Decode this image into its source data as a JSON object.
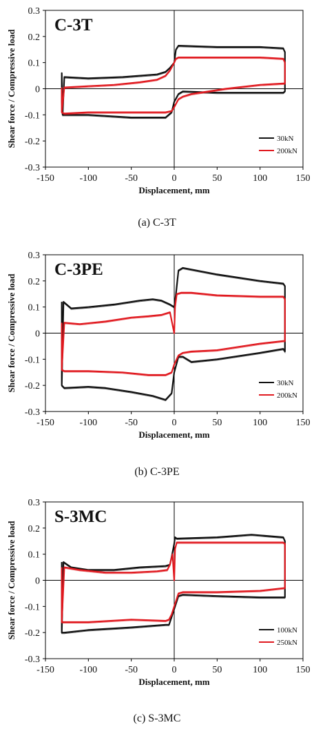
{
  "colors": {
    "series_a": "#111111",
    "series_b": "#e0191f",
    "axis": "#000000"
  },
  "chart_data": [
    {
      "type": "line",
      "title": "C-3T",
      "caption": "(a) C-3T",
      "xlabel": "Displacement, mm",
      "ylabel": "Shear force / Compressive load",
      "xlim": [
        -150,
        150
      ],
      "ylim": [
        -0.3,
        0.3
      ],
      "xticks": [
        "-150",
        "-100",
        "-50",
        "0",
        "50",
        "100",
        "150"
      ],
      "yticks": [
        "0.3",
        "0.2",
        "0.1",
        "0",
        "-0.1",
        "-0.2",
        "-0.3"
      ],
      "grid": false,
      "legend_position": "bottom-right",
      "series": [
        {
          "name": "30kN",
          "x": [
            -130,
            -128,
            -100,
            -60,
            -20,
            -10,
            -5,
            0,
            2,
            5,
            50,
            100,
            127,
            129,
            129,
            127,
            100,
            50,
            10,
            5,
            0,
            -3,
            -10,
            -50,
            -100,
            -128,
            -130,
            -131,
            -131,
            -130
          ],
          "y": [
            -0.1,
            0.045,
            0.04,
            0.045,
            0.055,
            0.065,
            0.08,
            0.1,
            0.15,
            0.165,
            0.16,
            0.16,
            0.155,
            0.14,
            -0.01,
            -0.015,
            -0.015,
            -0.015,
            -0.01,
            -0.02,
            -0.05,
            -0.09,
            -0.11,
            -0.11,
            -0.1,
            -0.1,
            -0.1,
            -0.05,
            0.06,
            -0.1
          ]
        },
        {
          "name": "200kN",
          "x": [
            -131,
            -128,
            -100,
            -70,
            -40,
            -20,
            -10,
            -5,
            0,
            2,
            5,
            50,
            100,
            127,
            129,
            129,
            127,
            100,
            60,
            20,
            10,
            5,
            0,
            -3,
            -10,
            -50,
            -100,
            -128,
            -131,
            -131
          ],
          "y": [
            -0.09,
            0.005,
            0.01,
            0.015,
            0.025,
            0.035,
            0.05,
            0.07,
            0.1,
            0.115,
            0.12,
            0.12,
            0.12,
            0.115,
            0.1,
            0.02,
            0.02,
            0.015,
            0.0,
            -0.02,
            -0.03,
            -0.04,
            -0.07,
            -0.085,
            -0.09,
            -0.09,
            -0.09,
            -0.095,
            -0.09,
            0.005
          ]
        }
      ]
    },
    {
      "type": "line",
      "title": "C-3PE",
      "caption": "(b) C-3PE",
      "xlabel": "Displacement, mm",
      "ylabel": "Shear force / Compressive load",
      "xlim": [
        -150,
        150
      ],
      "ylim": [
        -0.3,
        0.3
      ],
      "xticks": [
        "-150",
        "-100",
        "-50",
        "0",
        "50",
        "100",
        "150"
      ],
      "yticks": [
        "0.3",
        "0.2",
        "0.1",
        "0",
        "-0.1",
        "-0.2",
        "-0.3"
      ],
      "grid": false,
      "legend_position": "bottom-right",
      "series": [
        {
          "name": "30kN",
          "x": [
            -131,
            -129,
            -120,
            -100,
            -70,
            -40,
            -25,
            -15,
            -5,
            0,
            2,
            5,
            10,
            50,
            100,
            127,
            129,
            129,
            127,
            100,
            50,
            20,
            10,
            5,
            0,
            -3,
            -10,
            -25,
            -50,
            -80,
            -100,
            -128,
            -131,
            -131
          ],
          "y": [
            -0.2,
            0.12,
            0.095,
            0.1,
            0.11,
            0.125,
            0.13,
            0.125,
            0.11,
            0.1,
            0.15,
            0.24,
            0.25,
            0.225,
            0.2,
            0.19,
            0.18,
            -0.07,
            -0.06,
            -0.075,
            -0.1,
            -0.11,
            -0.09,
            -0.09,
            -0.15,
            -0.23,
            -0.255,
            -0.24,
            -0.225,
            -0.21,
            -0.205,
            -0.21,
            -0.2,
            0.12
          ]
        },
        {
          "name": "200kN",
          "x": [
            -131,
            -128,
            -110,
            -80,
            -50,
            -30,
            -15,
            -5,
            0,
            1,
            3,
            8,
            20,
            50,
            100,
            127,
            129,
            129,
            127,
            100,
            50,
            20,
            10,
            5,
            0,
            -3,
            -10,
            -30,
            -60,
            -100,
            -128,
            -131,
            -131
          ],
          "y": [
            -0.14,
            0.04,
            0.035,
            0.045,
            0.06,
            0.065,
            0.07,
            0.08,
            0.0,
            0.1,
            0.15,
            0.155,
            0.155,
            0.145,
            0.14,
            0.14,
            0.13,
            -0.03,
            -0.03,
            -0.04,
            -0.065,
            -0.07,
            -0.075,
            -0.085,
            -0.12,
            -0.15,
            -0.16,
            -0.16,
            -0.15,
            -0.145,
            -0.145,
            -0.14,
            0.04
          ]
        }
      ]
    },
    {
      "type": "line",
      "title": "S-3MC",
      "caption": "(c) S-3MC",
      "xlabel": "Displacement, mm",
      "ylabel": "Shear force / Compressive load",
      "xlim": [
        -150,
        150
      ],
      "ylim": [
        -0.3,
        0.3
      ],
      "xticks": [
        "-150",
        "-100",
        "-50",
        "0",
        "50",
        "100",
        "150"
      ],
      "yticks": [
        "0.3",
        "0.2",
        "0.1",
        "0",
        "-0.1",
        "-0.2",
        "-0.3"
      ],
      "grid": false,
      "legend_position": "bottom-right",
      "series": [
        {
          "name": "100kN",
          "x": [
            -131,
            -129,
            -120,
            -100,
            -70,
            -40,
            -10,
            -5,
            -3,
            0,
            1,
            3,
            50,
            90,
            127,
            129,
            129,
            127,
            100,
            50,
            10,
            5,
            0,
            -3,
            -6,
            -10,
            -50,
            -100,
            -128,
            -131,
            -131
          ],
          "y": [
            -0.2,
            0.07,
            0.05,
            0.04,
            0.04,
            0.05,
            0.055,
            0.06,
            0.09,
            0.14,
            0.165,
            0.16,
            0.165,
            0.175,
            0.165,
            0.15,
            -0.065,
            -0.065,
            -0.065,
            -0.06,
            -0.055,
            -0.06,
            -0.11,
            -0.14,
            -0.17,
            -0.17,
            -0.18,
            -0.19,
            -0.2,
            -0.2,
            0.07
          ]
        },
        {
          "name": "250kN",
          "x": [
            -131,
            -128,
            -110,
            -80,
            -50,
            -20,
            -8,
            -5,
            -2,
            0,
            1,
            3,
            50,
            100,
            127,
            129,
            129,
            127,
            100,
            50,
            10,
            5,
            0,
            -3,
            -6,
            -10,
            -50,
            -100,
            -128,
            -131,
            -131
          ],
          "y": [
            -0.16,
            0.05,
            0.04,
            0.03,
            0.03,
            0.035,
            0.04,
            0.06,
            0.1,
            0.0,
            0.12,
            0.145,
            0.145,
            0.145,
            0.145,
            0.14,
            -0.03,
            -0.03,
            -0.04,
            -0.045,
            -0.045,
            -0.05,
            -0.1,
            -0.13,
            -0.15,
            -0.155,
            -0.15,
            -0.16,
            -0.16,
            -0.16,
            0.05
          ]
        }
      ]
    }
  ]
}
